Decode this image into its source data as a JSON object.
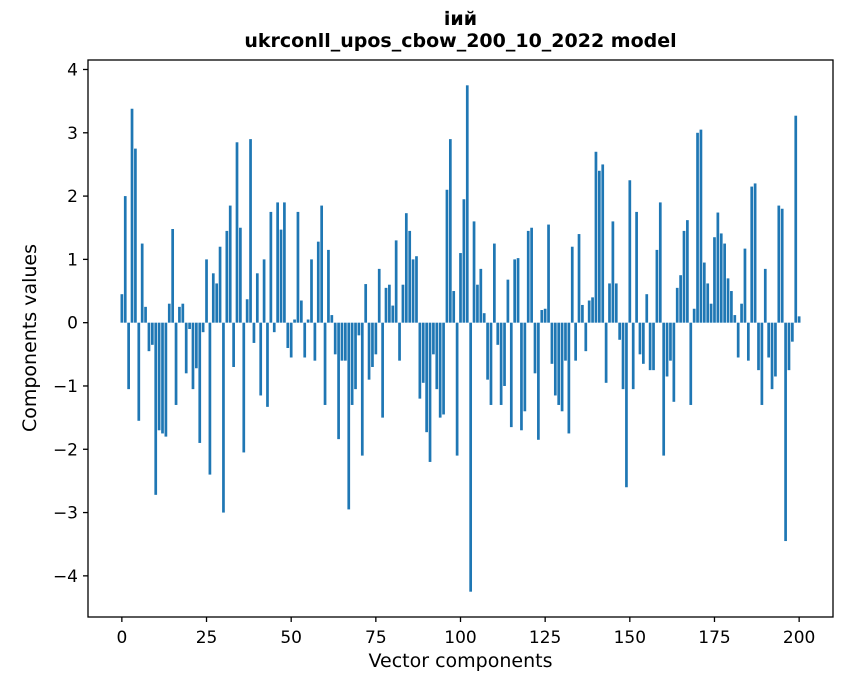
{
  "figure": {
    "title_line1": "іий",
    "title_line2": "ukrconll_upos_cbow_200_10_2022 model"
  },
  "chart_data": {
    "type": "bar",
    "title": "іий",
    "subtitle": "ukrconll_upos_cbow_200_10_2022 model",
    "xlabel": "Vector components",
    "ylabel": "Components values",
    "bar_color": "#1f77b4",
    "axis_color": "#000000",
    "grid": false,
    "legend": null,
    "x_start": 0,
    "xlim": [
      -10,
      210
    ],
    "ylim": [
      -4.65,
      4.15
    ],
    "xticks": [
      0,
      25,
      50,
      75,
      100,
      125,
      150,
      175,
      200
    ],
    "yticks": [
      -4,
      -3,
      -2,
      -1,
      0,
      1,
      2,
      3,
      4
    ],
    "values": [
      0.45,
      2.0,
      -1.05,
      3.38,
      2.75,
      -1.55,
      1.25,
      0.25,
      -0.45,
      -0.35,
      -2.72,
      -1.7,
      -1.75,
      -1.8,
      0.3,
      1.48,
      -1.3,
      0.25,
      0.3,
      -0.8,
      -0.1,
      -1.05,
      -0.72,
      -1.9,
      -0.15,
      1.0,
      -2.4,
      0.78,
      0.62,
      1.2,
      -3.0,
      1.45,
      1.85,
      -0.7,
      2.85,
      1.5,
      -2.05,
      0.37,
      2.9,
      -0.32,
      0.78,
      -1.15,
      1.0,
      -1.33,
      1.75,
      -0.15,
      1.9,
      1.47,
      1.9,
      -0.4,
      -0.55,
      0.05,
      1.75,
      0.35,
      -0.55,
      0.05,
      1.0,
      -0.6,
      1.28,
      1.85,
      -1.3,
      1.15,
      0.12,
      -0.5,
      -1.84,
      -0.6,
      -0.6,
      -2.95,
      -1.3,
      -1.05,
      -0.2,
      -2.1,
      0.61,
      -0.9,
      -0.7,
      -0.5,
      0.85,
      -1.5,
      0.55,
      0.6,
      0.27,
      1.3,
      -0.6,
      0.6,
      1.73,
      1.45,
      1.0,
      1.05,
      -1.2,
      -0.95,
      -1.73,
      -2.2,
      -0.5,
      -1.05,
      -1.5,
      -1.45,
      2.1,
      2.9,
      0.5,
      -2.1,
      1.1,
      1.95,
      3.75,
      -4.25,
      1.6,
      0.6,
      0.85,
      0.15,
      -0.9,
      -1.3,
      1.25,
      -0.35,
      -1.3,
      -1.0,
      0.68,
      -1.65,
      1.0,
      1.02,
      -1.7,
      -1.4,
      1.45,
      1.5,
      -0.8,
      -1.85,
      0.2,
      0.22,
      1.55,
      -0.65,
      -1.15,
      -1.3,
      -1.4,
      -0.6,
      -1.75,
      1.2,
      -0.6,
      1.4,
      0.28,
      -0.45,
      0.35,
      0.4,
      2.7,
      2.4,
      2.5,
      -0.95,
      0.62,
      1.6,
      0.62,
      -0.27,
      -1.05,
      -2.6,
      2.25,
      -1.05,
      1.75,
      -0.5,
      -0.65,
      0.45,
      -0.75,
      -0.75,
      1.15,
      1.9,
      -2.1,
      -0.85,
      -0.6,
      -1.25,
      0.55,
      0.75,
      1.45,
      1.62,
      -1.3,
      0.22,
      3.0,
      3.05,
      0.95,
      0.62,
      0.3,
      1.35,
      1.74,
      1.41,
      1.25,
      0.7,
      0.5,
      0.12,
      -0.55,
      0.3,
      1.17,
      -0.6,
      2.15,
      2.2,
      -0.75,
      -1.3,
      0.85,
      -0.55,
      -1.05,
      -0.85,
      1.85,
      1.8,
      -3.45,
      -0.75,
      -0.3,
      3.27,
      0.1
    ]
  }
}
